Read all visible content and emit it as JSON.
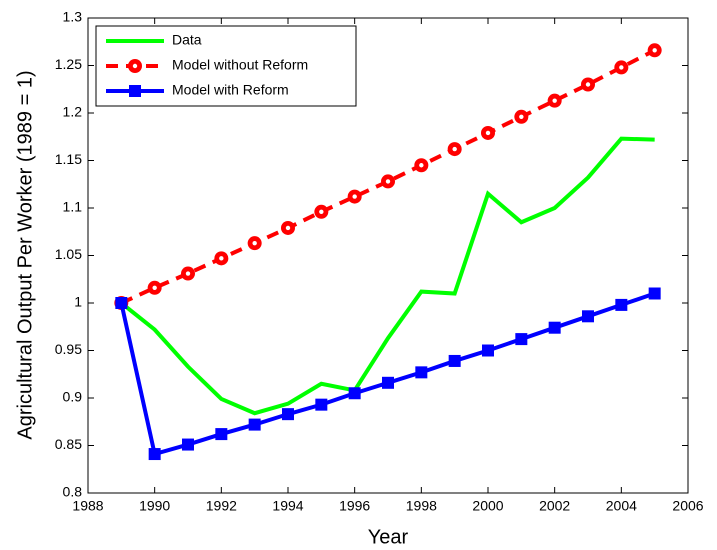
{
  "chart_data": {
    "type": "line",
    "x": [
      1989,
      1990,
      1991,
      1992,
      1993,
      1994,
      1995,
      1996,
      1997,
      1998,
      1999,
      2000,
      2001,
      2002,
      2003,
      2004,
      2005
    ],
    "series": [
      {
        "name": "Data",
        "color": "#00ff00",
        "marker": "none",
        "dash": false,
        "values": [
          1.0,
          0.972,
          0.933,
          0.899,
          0.884,
          0.894,
          0.915,
          0.908,
          0.963,
          1.012,
          1.01,
          1.115,
          1.085,
          1.1,
          1.132,
          1.173,
          1.172
        ]
      },
      {
        "name": "Model without Reform",
        "color": "#ff0000",
        "marker": "circle",
        "dash": true,
        "values": [
          1.0,
          1.016,
          1.031,
          1.047,
          1.063,
          1.079,
          1.096,
          1.112,
          1.128,
          1.145,
          1.162,
          1.179,
          1.196,
          1.213,
          1.23,
          1.248,
          1.266
        ]
      },
      {
        "name": "Model with Reform",
        "color": "#0000ff",
        "marker": "square",
        "dash": false,
        "values": [
          1.0,
          0.841,
          0.851,
          0.862,
          0.872,
          0.883,
          0.893,
          0.905,
          0.916,
          0.927,
          0.939,
          0.95,
          0.962,
          0.974,
          0.986,
          0.998,
          1.01
        ]
      }
    ],
    "x_label": "Year",
    "y_label": "Agricultural Output Per Worker (1989 = 1)",
    "xlim": [
      1988,
      2006
    ],
    "xticks": [
      1988,
      1990,
      1992,
      1994,
      1996,
      1998,
      2000,
      2002,
      2004,
      2006
    ],
    "ylim": [
      0.8,
      1.3
    ],
    "yticks": [
      0.8,
      0.85,
      0.9,
      0.95,
      1,
      1.05,
      1.1,
      1.15,
      1.2,
      1.25,
      1.3
    ],
    "grid": false,
    "legend": "upper-left"
  }
}
